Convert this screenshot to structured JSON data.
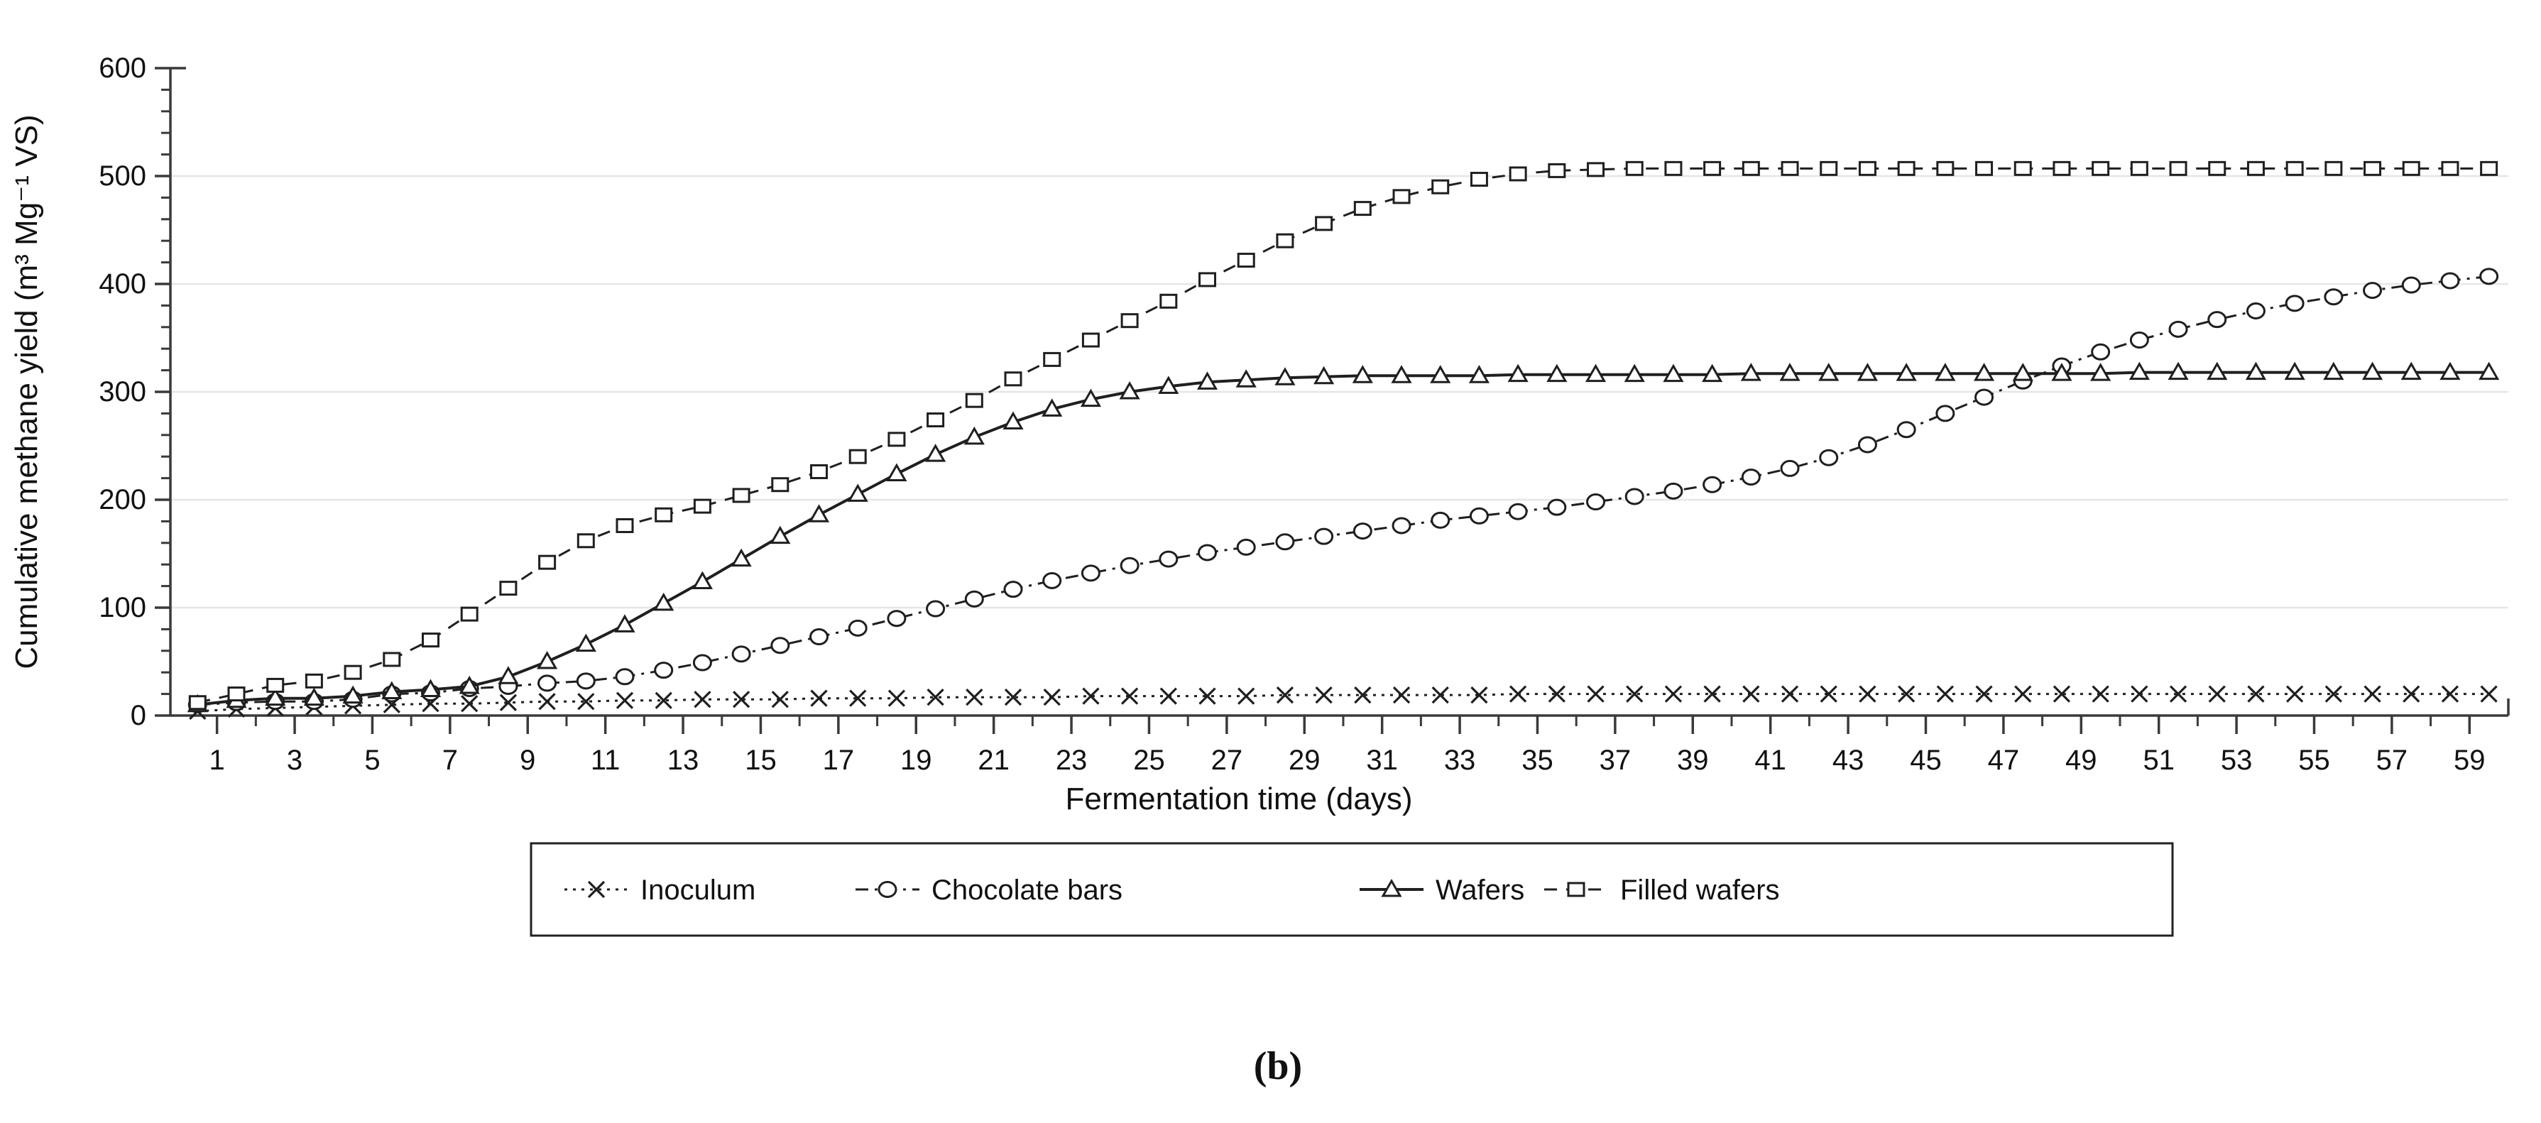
{
  "chart_data": {
    "type": "line",
    "title": "",
    "xlabel": "Fermentation time (days)",
    "ylabel": "Cumulative methane yield (m³ Mg⁻¹ VS)",
    "caption": "(b)",
    "x_start": 0.5,
    "x_step": 1,
    "xlim": [
      -0.2,
      60.0
    ],
    "ylim": [
      0,
      600
    ],
    "x_major_ticks": [
      1,
      3,
      5,
      7,
      9,
      11,
      13,
      15,
      17,
      19,
      21,
      23,
      25,
      27,
      29,
      31,
      33,
      35,
      37,
      39,
      41,
      43,
      45,
      47,
      49,
      51,
      53,
      55,
      57,
      59
    ],
    "x_minor_ticks": [
      2,
      4,
      6,
      8,
      10,
      12,
      14,
      16,
      18,
      20,
      22,
      24,
      26,
      28,
      30,
      32,
      34,
      36,
      38,
      40,
      42,
      44,
      46,
      48,
      50,
      52,
      54,
      56,
      58
    ],
    "y_major_ticks": [
      0,
      100,
      200,
      300,
      400,
      500,
      600
    ],
    "y_minor_step": 20,
    "grid_values": [
      100,
      200,
      300,
      400,
      500
    ],
    "grid_color": "#e6e6e6",
    "axis_color": "#3a3a3a",
    "series_color": "#1f1f1f",
    "legend_position": "bottom",
    "series": [
      {
        "name": "Inoculum",
        "marker": "x",
        "line_style": "dotted",
        "values": [
          4,
          6,
          7,
          8,
          9,
          10,
          11,
          11,
          12,
          13,
          13,
          14,
          14,
          15,
          15,
          15,
          16,
          16,
          16,
          17,
          17,
          17,
          17,
          18,
          18,
          18,
          18,
          18,
          19,
          19,
          19,
          19,
          19,
          19,
          20,
          20,
          20,
          20,
          20,
          20,
          20,
          20,
          20,
          20,
          20,
          20,
          20,
          20,
          20,
          20,
          20,
          20,
          20,
          20,
          20,
          20,
          20,
          20,
          20,
          20
        ]
      },
      {
        "name": "Chocolate bars",
        "marker": "circle",
        "line_style": "dashdot",
        "values": [
          10,
          12,
          13,
          13,
          15,
          20,
          21,
          25,
          27,
          30,
          32,
          36,
          42,
          49,
          57,
          65,
          73,
          81,
          90,
          99,
          108,
          117,
          125,
          132,
          139,
          145,
          151,
          156,
          161,
          166,
          171,
          176,
          181,
          185,
          189,
          193,
          198,
          203,
          208,
          214,
          221,
          229,
          239,
          251,
          265,
          280,
          295,
          310,
          324,
          337,
          348,
          358,
          367,
          375,
          382,
          388,
          394,
          399,
          403,
          407
        ]
      },
      {
        "name": "Wafers",
        "marker": "triangle",
        "line_style": "solid",
        "values": [
          10,
          14,
          16,
          16,
          18,
          22,
          24,
          27,
          36,
          50,
          66,
          84,
          104,
          124,
          145,
          166,
          186,
          205,
          224,
          242,
          258,
          272,
          284,
          293,
          300,
          305,
          309,
          311,
          313,
          314,
          315,
          315,
          315,
          315,
          316,
          316,
          316,
          316,
          316,
          316,
          317,
          317,
          317,
          317,
          317,
          317,
          317,
          317,
          317,
          317,
          318,
          318,
          318,
          318,
          318,
          318,
          318,
          318,
          318,
          318
        ]
      },
      {
        "name": "Filled wafers",
        "marker": "square",
        "line_style": "dashed",
        "values": [
          12,
          20,
          28,
          32,
          40,
          52,
          70,
          94,
          118,
          142,
          162,
          176,
          186,
          194,
          204,
          214,
          226,
          240,
          256,
          274,
          292,
          312,
          330,
          348,
          366,
          384,
          404,
          422,
          440,
          456,
          470,
          481,
          490,
          497,
          502,
          505,
          506,
          507,
          507,
          507,
          507,
          507,
          507,
          507,
          507,
          507,
          507,
          507,
          507,
          507,
          507,
          507,
          507,
          507,
          507,
          507,
          507,
          507,
          507,
          507
        ]
      }
    ]
  }
}
